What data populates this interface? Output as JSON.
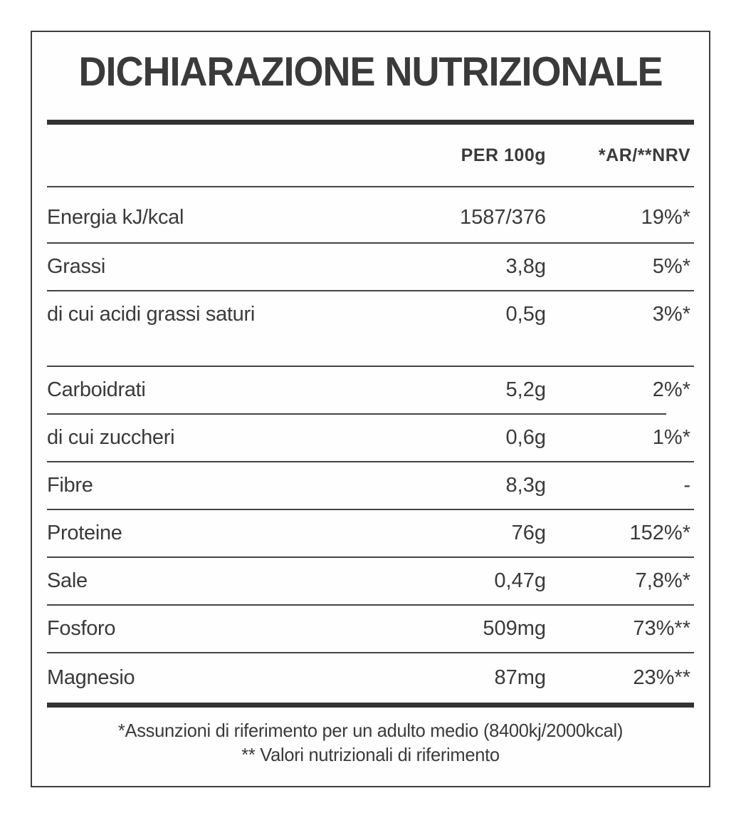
{
  "title": "DICHIARAZIONE NUTRIZIONALE",
  "table": {
    "columns": {
      "per100g": "PER 100g",
      "ar_nrv": "*AR/**NRV"
    },
    "rows": [
      {
        "label": "Energia kJ/kcal",
        "per100g": "1587/376",
        "nrv": "19%*"
      },
      {
        "label": "Grassi",
        "per100g": "3,8g",
        "nrv": "5%*"
      },
      {
        "label": "di cui acidi grassi saturi",
        "per100g": "0,5g",
        "nrv": "3%*"
      },
      {
        "label": "Carboidrati",
        "per100g": "5,2g",
        "nrv": "2%*"
      },
      {
        "label": "di cui zuccheri",
        "per100g": "0,6g",
        "nrv": "1%*"
      },
      {
        "label": "Fibre",
        "per100g": "8,3g",
        "nrv": "-"
      },
      {
        "label": "Proteine",
        "per100g": "76g",
        "nrv": "152%*"
      },
      {
        "label": "Sale",
        "per100g": "0,47g",
        "nrv": "7,8%*"
      },
      {
        "label": "Fosforo",
        "per100g": "509mg",
        "nrv": "73%**"
      },
      {
        "label": "Magnesio",
        "per100g": "87mg",
        "nrv": "23%**"
      }
    ]
  },
  "footnotes": {
    "line1": "*Assunzioni di riferimento per un adulto medio (8400kj/2000kcal)",
    "line2": "** Valori nutrizionali di riferimento"
  },
  "colors": {
    "text": "#3a3a3a",
    "rule": "#333333",
    "separator": "#454545",
    "background": "#ffffff"
  }
}
